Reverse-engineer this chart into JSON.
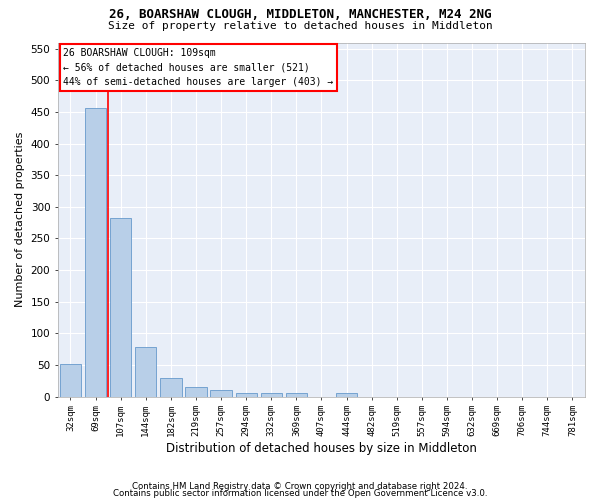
{
  "title1": "26, BOARSHAW CLOUGH, MIDDLETON, MANCHESTER, M24 2NG",
  "title2": "Size of property relative to detached houses in Middleton",
  "xlabel": "Distribution of detached houses by size in Middleton",
  "ylabel": "Number of detached properties",
  "bar_labels": [
    "32sqm",
    "69sqm",
    "107sqm",
    "144sqm",
    "182sqm",
    "219sqm",
    "257sqm",
    "294sqm",
    "332sqm",
    "369sqm",
    "407sqm",
    "444sqm",
    "482sqm",
    "519sqm",
    "557sqm",
    "594sqm",
    "632sqm",
    "669sqm",
    "706sqm",
    "744sqm",
    "781sqm"
  ],
  "bar_values": [
    52,
    457,
    283,
    78,
    30,
    15,
    10,
    5,
    5,
    6,
    0,
    5,
    0,
    0,
    0,
    0,
    0,
    0,
    0,
    0,
    0
  ],
  "bar_color": "#b8cfe8",
  "bar_edgecolor": "#6699cc",
  "background_color": "#e8eef8",
  "property_line_x": 2,
  "annotation_line1": "26 BOARSHAW CLOUGH: 109sqm",
  "annotation_line2": "← 56% of detached houses are smaller (521)",
  "annotation_line3": "44% of semi-detached houses are larger (403) →",
  "footer1": "Contains HM Land Registry data © Crown copyright and database right 2024.",
  "footer2": "Contains public sector information licensed under the Open Government Licence v3.0.",
  "ylim": [
    0,
    560
  ],
  "yticks": [
    0,
    50,
    100,
    150,
    200,
    250,
    300,
    350,
    400,
    450,
    500,
    550
  ]
}
